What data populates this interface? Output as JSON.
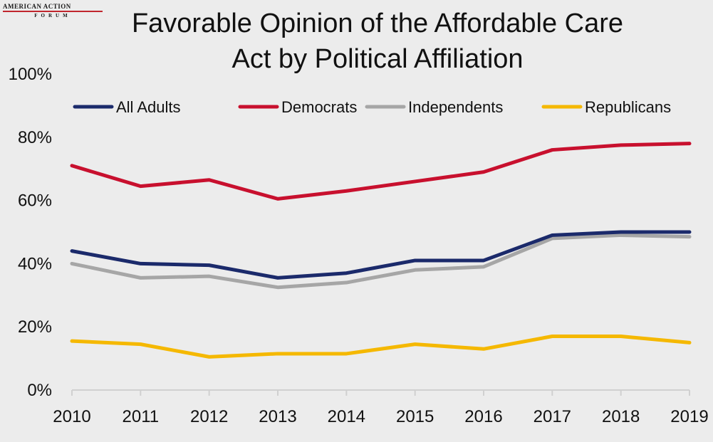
{
  "logo": {
    "top": "AMERICAN ACTION",
    "bottom": "FORUM",
    "line_color": "#c0262d"
  },
  "title_line1": "Favorable Opinion of the Affordable Care",
  "title_line2": "Act by Political Affiliation",
  "chart_data": {
    "type": "line",
    "title": "Favorable Opinion of the Affordable Care Act by Political Affiliation",
    "x": [
      "2010",
      "2011",
      "2012",
      "2013",
      "2014",
      "2015",
      "2016",
      "2017",
      "2018",
      "2019"
    ],
    "ylim": [
      0,
      100
    ],
    "yticks": [
      0,
      20,
      40,
      60,
      80,
      100
    ],
    "ytick_labels": [
      "0%",
      "20%",
      "40%",
      "60%",
      "80%",
      "100%"
    ],
    "grid": false,
    "legend_position": "top",
    "series": [
      {
        "name": "All Adults",
        "color": "#1b2a6b",
        "values": [
          44,
          40,
          39.5,
          35.5,
          37,
          41,
          41,
          49,
          50,
          50
        ]
      },
      {
        "name": "Democrats",
        "color": "#c8102e",
        "values": [
          71,
          64.5,
          66.5,
          60.5,
          63,
          66,
          69,
          76,
          77.5,
          78
        ]
      },
      {
        "name": "Independents",
        "color": "#a6a6a6",
        "values": [
          40,
          35.5,
          36,
          32.5,
          34,
          38,
          39,
          48,
          49,
          48.5
        ]
      },
      {
        "name": "Republicans",
        "color": "#f5b800",
        "values": [
          15.5,
          14.5,
          10.5,
          11.5,
          11.5,
          14.5,
          13,
          17,
          17,
          15
        ]
      }
    ]
  }
}
